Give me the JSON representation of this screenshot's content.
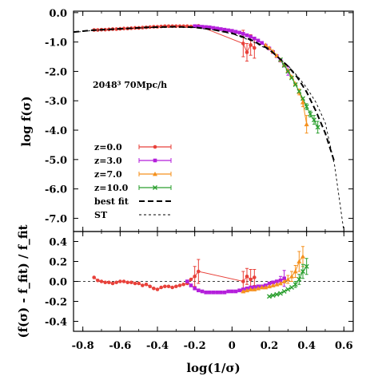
{
  "chart_data": [
    {
      "type": "scatter",
      "panel": "top",
      "xlim": [
        -0.85,
        0.65
      ],
      "ylim": [
        -7.45,
        0.05
      ],
      "ylabel": "log f(σ)",
      "yticks": [
        0.0,
        -1.0,
        -2.0,
        -3.0,
        -4.0,
        -5.0,
        -6.0,
        -7.0
      ],
      "ytick_labels": [
        "0.0",
        "-1.0",
        "-2.0",
        "-3.0",
        "-4.0",
        "-5.0",
        "-6.0",
        "-7.0"
      ],
      "grid": false,
      "legend_position": "lower-left",
      "annotation": "2048³ 70Mpc/h",
      "series": [
        {
          "name": "z=0.0",
          "color": "#e8413a",
          "marker": "circle",
          "x": [
            -0.74,
            -0.72,
            -0.7,
            -0.68,
            -0.66,
            -0.64,
            -0.62,
            -0.6,
            -0.58,
            -0.56,
            -0.54,
            -0.52,
            -0.5,
            -0.48,
            -0.46,
            -0.44,
            -0.42,
            -0.4,
            -0.38,
            -0.36,
            -0.34,
            -0.32,
            -0.3,
            -0.28,
            -0.26,
            -0.24,
            -0.22,
            -0.2,
            -0.18,
            0.06,
            0.08,
            0.1,
            0.12
          ],
          "y": [
            -0.59,
            -0.59,
            -0.58,
            -0.58,
            -0.57,
            -0.56,
            -0.56,
            -0.55,
            -0.54,
            -0.54,
            -0.53,
            -0.52,
            -0.52,
            -0.51,
            -0.5,
            -0.49,
            -0.48,
            -0.48,
            -0.47,
            -0.46,
            -0.46,
            -0.46,
            -0.46,
            -0.46,
            -0.46,
            -0.46,
            -0.47,
            -0.46,
            -0.45,
            -1.05,
            -1.35,
            -1.1,
            -1.2
          ],
          "err": [
            0,
            0,
            0,
            0,
            0,
            0,
            0,
            0,
            0,
            0,
            0,
            0,
            0,
            0,
            0,
            0,
            0,
            0,
            0,
            0,
            0,
            0,
            0,
            0,
            0,
            0,
            0,
            0,
            0,
            0.45,
            0.3,
            0.35,
            0.35
          ]
        },
        {
          "name": "z=3.0",
          "color": "#b41fdb",
          "marker": "square",
          "x": [
            -0.2,
            -0.18,
            -0.16,
            -0.14,
            -0.12,
            -0.1,
            -0.08,
            -0.06,
            -0.04,
            -0.02,
            0.0,
            0.02,
            0.04,
            0.06,
            0.08,
            0.1,
            0.12,
            0.14,
            0.16,
            0.18,
            0.2,
            0.22,
            0.24,
            0.26,
            0.28,
            0.3
          ],
          "y": [
            -0.46,
            -0.47,
            -0.48,
            -0.49,
            -0.5,
            -0.52,
            -0.54,
            -0.56,
            -0.58,
            -0.6,
            -0.62,
            -0.65,
            -0.68,
            -0.72,
            -0.77,
            -0.82,
            -0.88,
            -0.95,
            -1.03,
            -1.12,
            -1.22,
            -1.34,
            -1.48,
            -1.63,
            -1.8,
            -1.98
          ],
          "err": [
            0,
            0,
            0,
            0,
            0,
            0,
            0,
            0,
            0,
            0,
            0,
            0,
            0,
            0,
            0,
            0,
            0,
            0,
            0,
            0,
            0,
            0,
            0,
            0,
            0,
            0.15
          ]
        },
        {
          "name": "z=7.0",
          "color": "#f5911e",
          "marker": "triangle",
          "x": [
            0.18,
            0.2,
            0.22,
            0.24,
            0.26,
            0.28,
            0.3,
            0.32,
            0.34,
            0.36,
            0.38,
            0.4
          ],
          "y": [
            -1.1,
            -1.2,
            -1.32,
            -1.46,
            -1.61,
            -1.78,
            -1.97,
            -2.18,
            -2.42,
            -2.7,
            -3.05,
            -3.8
          ],
          "err": [
            0,
            0,
            0,
            0,
            0,
            0,
            0,
            0,
            0,
            0.1,
            0.15,
            0.3
          ]
        },
        {
          "name": "z=10.0",
          "color": "#2a9f2e",
          "marker": "cross",
          "x": [
            0.26,
            0.28,
            0.3,
            0.32,
            0.34,
            0.36,
            0.38,
            0.4,
            0.42,
            0.44,
            0.46
          ],
          "y": [
            -1.6,
            -1.8,
            -2.0,
            -2.22,
            -2.45,
            -2.68,
            -2.92,
            -3.2,
            -3.45,
            -3.65,
            -3.9
          ],
          "err": [
            0,
            0,
            0,
            0,
            0,
            0,
            0,
            0.1,
            0.1,
            0.15,
            0.2
          ]
        },
        {
          "name": "best fit",
          "color": "#000000",
          "style": "dashed-bold",
          "x": [
            -0.85,
            -0.75,
            -0.6,
            -0.45,
            -0.3,
            -0.2,
            -0.1,
            0.0,
            0.1,
            0.2,
            0.3,
            0.35,
            0.4,
            0.45,
            0.5,
            0.55
          ],
          "y": [
            -0.66,
            -0.6,
            -0.55,
            -0.5,
            -0.48,
            -0.5,
            -0.58,
            -0.7,
            -0.92,
            -1.25,
            -1.82,
            -2.2,
            -2.7,
            -3.35,
            -4.1,
            -5.1
          ]
        },
        {
          "name": "ST",
          "color": "#000000",
          "style": "dashed-thin",
          "x": [
            -0.85,
            -0.75,
            -0.6,
            -0.45,
            -0.3,
            -0.2,
            -0.1,
            0.0,
            0.1,
            0.2,
            0.3,
            0.35,
            0.4,
            0.45,
            0.5,
            0.55,
            0.6
          ],
          "y": [
            -0.67,
            -0.61,
            -0.55,
            -0.51,
            -0.49,
            -0.51,
            -0.59,
            -0.72,
            -0.95,
            -1.28,
            -1.8,
            -2.15,
            -2.55,
            -3.05,
            -3.75,
            -5.2,
            -7.45
          ]
        }
      ]
    },
    {
      "type": "scatter",
      "panel": "bottom",
      "xlim": [
        -0.85,
        0.65
      ],
      "ylim": [
        -0.5,
        0.5
      ],
      "xlabel": "log(1/σ)",
      "ylabel": "(f(σ) - f_fit) / f_fit",
      "xticks": [
        -0.8,
        -0.6,
        -0.4,
        -0.2,
        0.0,
        0.2,
        0.4,
        0.6
      ],
      "xtick_labels": [
        "-0.8",
        "-0.6",
        "-0.4",
        "-0.2",
        "0",
        "0.2",
        "0.4",
        "0.6"
      ],
      "yticks": [
        0.4,
        0.2,
        0.0,
        -0.2,
        -0.4
      ],
      "ytick_labels": [
        "0.4",
        "0.2",
        "0.0",
        "-0.2",
        "-0.4"
      ],
      "zero_line": true,
      "series": [
        {
          "name": "z=0.0",
          "color": "#e8413a",
          "marker": "circle",
          "x": [
            -0.74,
            -0.72,
            -0.7,
            -0.68,
            -0.66,
            -0.64,
            -0.62,
            -0.6,
            -0.58,
            -0.56,
            -0.54,
            -0.52,
            -0.5,
            -0.48,
            -0.46,
            -0.44,
            -0.42,
            -0.4,
            -0.38,
            -0.36,
            -0.34,
            -0.32,
            -0.3,
            -0.28,
            -0.26,
            -0.24,
            -0.22,
            -0.2,
            -0.18,
            0.06,
            0.08,
            0.1,
            0.12
          ],
          "y": [
            0.04,
            0.01,
            0.0,
            -0.01,
            -0.01,
            -0.02,
            -0.01,
            0.0,
            0.0,
            -0.01,
            -0.01,
            -0.02,
            -0.02,
            -0.04,
            -0.03,
            -0.05,
            -0.07,
            -0.08,
            -0.06,
            -0.05,
            -0.05,
            -0.06,
            -0.05,
            -0.04,
            -0.03,
            -0.02,
            0.02,
            0.05,
            0.1,
            0.0,
            0.05,
            0.02,
            0.04
          ],
          "err": [
            0,
            0,
            0,
            0,
            0,
            0,
            0,
            0,
            0,
            0,
            0,
            0,
            0,
            0,
            0,
            0,
            0,
            0,
            0,
            0,
            0,
            0,
            0,
            0,
            0,
            0,
            0,
            0.1,
            0.12,
            0.1,
            0.08,
            0.1,
            0.08
          ]
        },
        {
          "name": "z=3.0",
          "color": "#b41fdb",
          "marker": "square",
          "x": [
            -0.24,
            -0.22,
            -0.2,
            -0.18,
            -0.16,
            -0.14,
            -0.12,
            -0.1,
            -0.08,
            -0.06,
            -0.04,
            -0.02,
            0.0,
            0.02,
            0.04,
            0.06,
            0.08,
            0.1,
            0.12,
            0.14,
            0.16,
            0.18,
            0.2,
            0.22,
            0.24,
            0.26,
            0.28
          ],
          "y": [
            0.0,
            -0.04,
            -0.07,
            -0.09,
            -0.1,
            -0.11,
            -0.11,
            -0.11,
            -0.11,
            -0.11,
            -0.11,
            -0.1,
            -0.1,
            -0.1,
            -0.09,
            -0.08,
            -0.07,
            -0.06,
            -0.06,
            -0.05,
            -0.05,
            -0.04,
            -0.02,
            -0.01,
            0.0,
            0.01,
            0.03
          ],
          "err": [
            0,
            0,
            0,
            0,
            0,
            0,
            0,
            0,
            0,
            0,
            0,
            0,
            0,
            0,
            0,
            0,
            0,
            0,
            0,
            0,
            0,
            0,
            0,
            0,
            0,
            0.04,
            0.08
          ]
        },
        {
          "name": "z=7.0",
          "color": "#f5911e",
          "marker": "triangle",
          "x": [
            0.06,
            0.08,
            0.1,
            0.12,
            0.14,
            0.16,
            0.18,
            0.2,
            0.22,
            0.24,
            0.26,
            0.28,
            0.3,
            0.32,
            0.34,
            0.36,
            0.38
          ],
          "y": [
            -0.1,
            -0.09,
            -0.08,
            -0.08,
            -0.07,
            -0.06,
            -0.06,
            -0.05,
            -0.04,
            -0.03,
            -0.02,
            0.0,
            0.02,
            0.05,
            0.1,
            0.2,
            0.25
          ],
          "err": [
            0,
            0,
            0,
            0,
            0,
            0,
            0,
            0,
            0,
            0,
            0,
            0,
            0.04,
            0.05,
            0.06,
            0.1,
            0.1
          ]
        },
        {
          "name": "z=10.0",
          "color": "#2a9f2e",
          "marker": "cross",
          "x": [
            0.2,
            0.22,
            0.24,
            0.26,
            0.28,
            0.3,
            0.32,
            0.34,
            0.36,
            0.38,
            0.4
          ],
          "y": [
            -0.15,
            -0.14,
            -0.13,
            -0.12,
            -0.1,
            -0.08,
            -0.06,
            -0.03,
            0.02,
            0.1,
            0.15
          ],
          "err": [
            0,
            0,
            0,
            0,
            0,
            0,
            0,
            0.03,
            0.05,
            0.07,
            0.08
          ]
        }
      ]
    }
  ]
}
